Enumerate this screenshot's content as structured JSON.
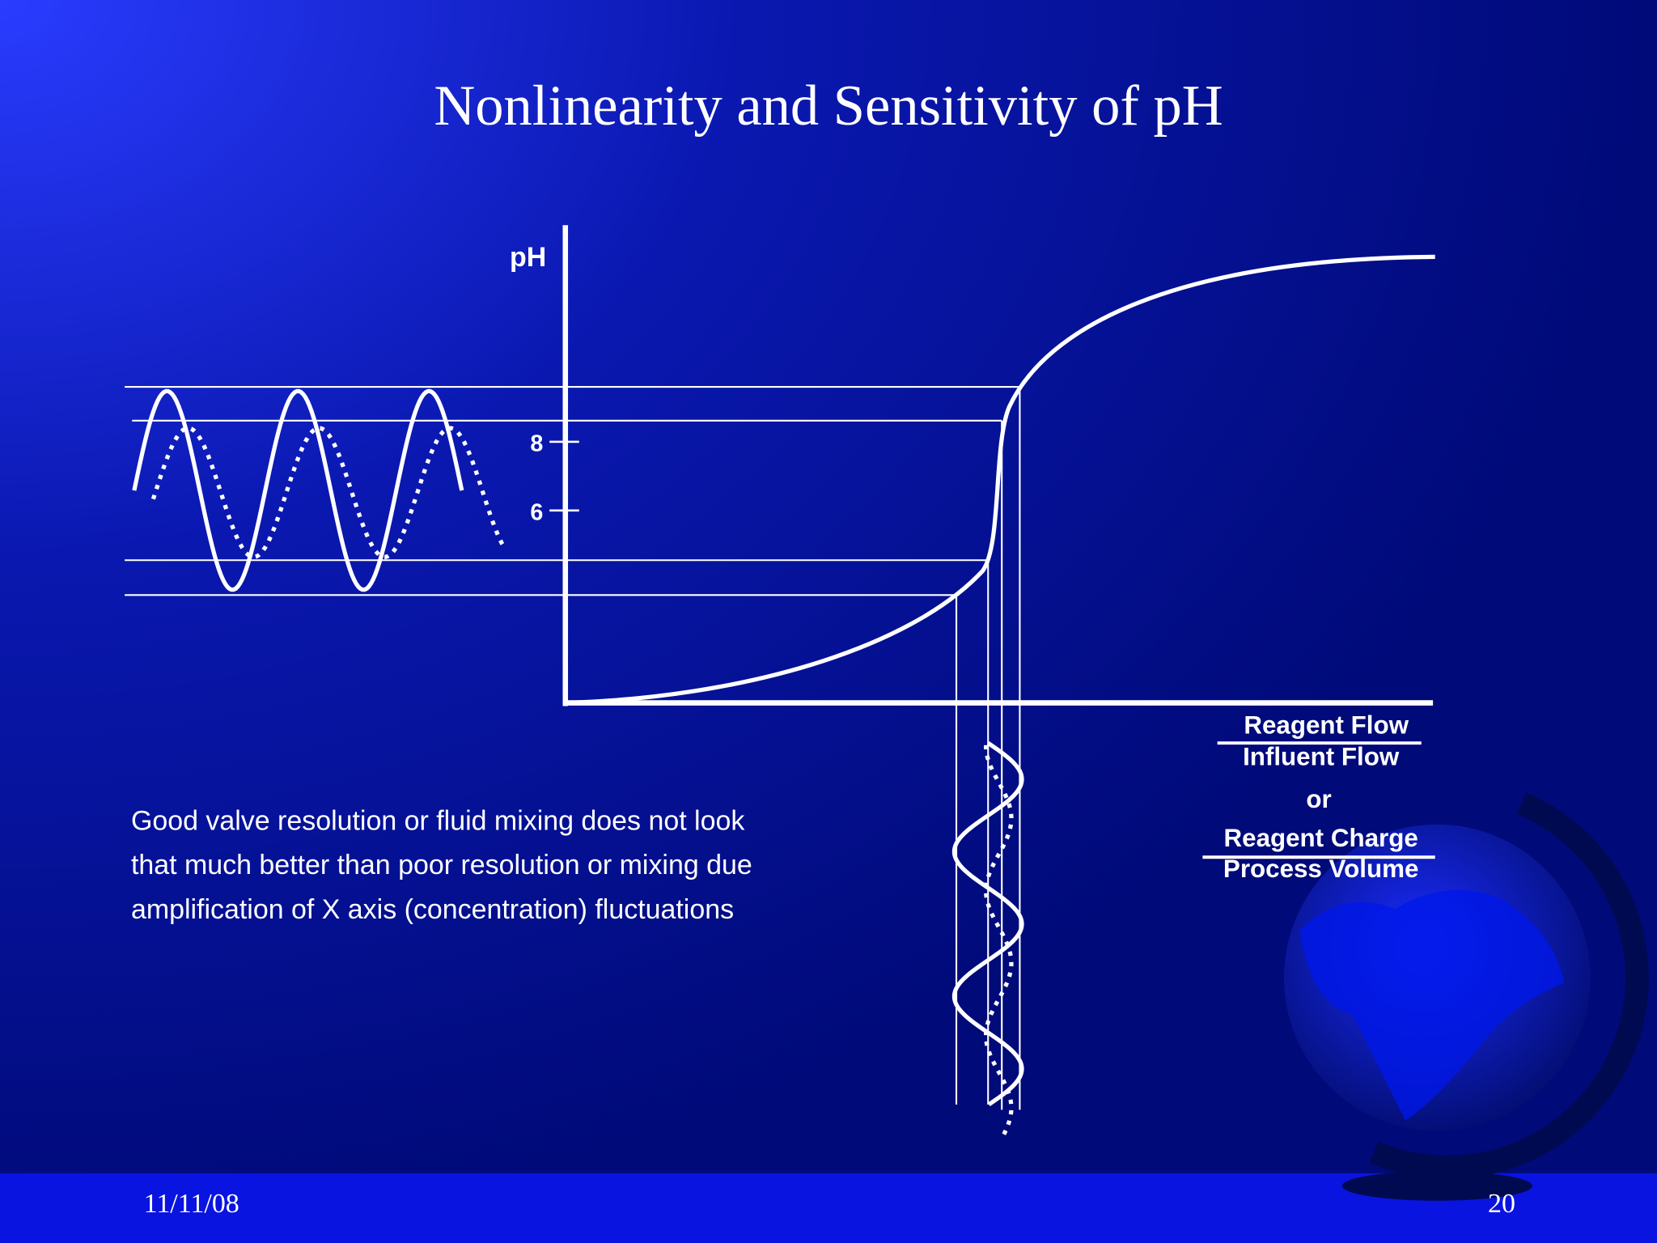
{
  "header": {
    "title": "Nonlinearity and Sensitivity of pH"
  },
  "diagram": {
    "y_label": "pH",
    "ticks": [
      "8",
      "6"
    ],
    "x_label": {
      "numerator_1": "Reagent Flow",
      "denominator_1": "Influent Flow",
      "separator": "or",
      "numerator_2": "Reagent Charge",
      "denominator_2": "Process Volume"
    }
  },
  "body": {
    "lines": [
      "Good valve resolution or fluid mixing does not look",
      "that much better than poor resolution or mixing due",
      "amplification of X axis (concentration) fluctuations"
    ]
  },
  "footer": {
    "date": "11/11/08",
    "page": "20"
  }
}
